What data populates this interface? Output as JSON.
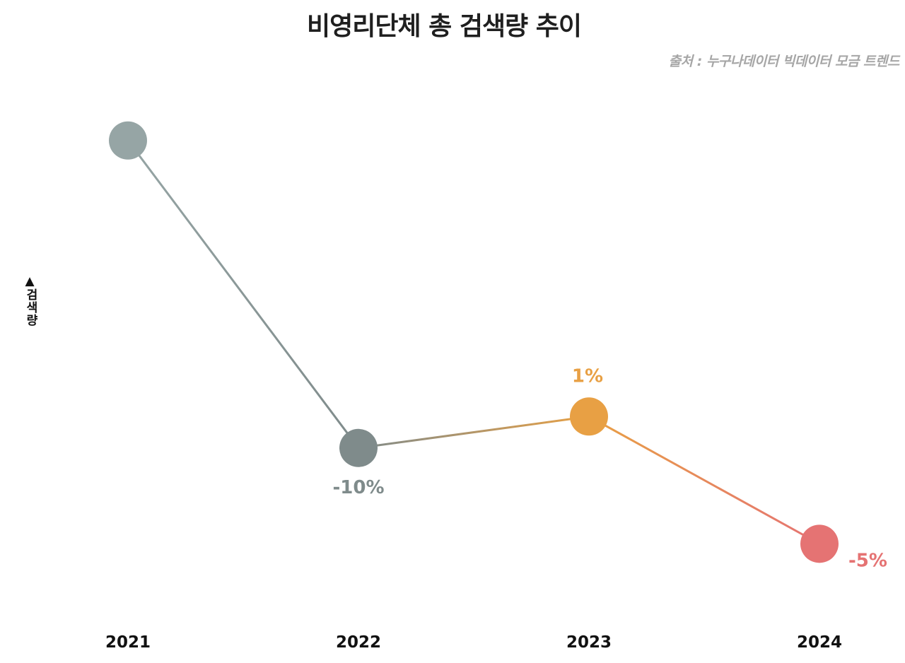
{
  "chart_data": {
    "type": "line",
    "title": "비영리단체 총 검색량 추이",
    "source": "출처 : 누구나데이터 빅데이터 모금 트렌드",
    "ylabel": "검색량",
    "y_arrow": "▲",
    "xlabel": "",
    "categories": [
      "2021",
      "2022",
      "2023",
      "2024"
    ],
    "values": [
      100,
      57,
      61.4,
      43.6
    ],
    "ylim": [
      38,
      107
    ],
    "data_labels": [
      "",
      "-10%",
      "1%",
      "-5%"
    ],
    "point_colors": [
      "#96a5a5",
      "#7f8b8b",
      "#e8a044",
      "#e57373"
    ],
    "label_colors": [
      "#96a5a5",
      "#7f8b8b",
      "#e8a044",
      "#e57373"
    ],
    "label_positions": [
      "none",
      "below",
      "above",
      "right"
    ],
    "grid": false,
    "legend": "none"
  }
}
